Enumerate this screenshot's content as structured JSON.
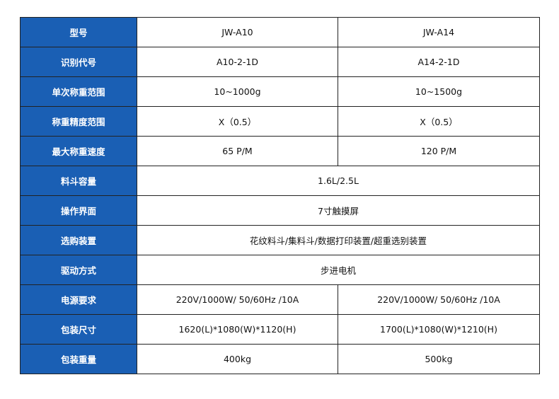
{
  "colors": {
    "label_bg": "#1a5fb4",
    "label_text": "#ffffff",
    "border": "#222222"
  },
  "rows": [
    {
      "label": "型号",
      "a": "JW-A10",
      "b": "JW-A14"
    },
    {
      "label": "识别代号",
      "a": "A10-2-1D",
      "b": "A14-2-1D"
    },
    {
      "label": "单次称重范围",
      "a": "10~1000g",
      "b": "10~1500g"
    },
    {
      "label": "称重精度范围",
      "a": "X（0.5）",
      "b": "X（0.5）"
    },
    {
      "label": "最大称重速度",
      "a": "65 P/M",
      "b": "120 P/M"
    },
    {
      "label": "料斗容量",
      "both": "1.6L/2.5L"
    },
    {
      "label": "操作界面",
      "both": "7寸触摸屏"
    },
    {
      "label": "选购装置",
      "both": "花纹料斗/集料斗/数据打印装置/超重选别装置"
    },
    {
      "label": "驱动方式",
      "both": "步进电机"
    },
    {
      "label": "电源要求",
      "a": "220V/1000W/ 50/60Hz /10A",
      "b": "220V/1000W/ 50/60Hz /10A"
    },
    {
      "label": "包装尺寸",
      "a": "1620(L)*1080(W)*1120(H)",
      "b": "1700(L)*1080(W)*1210(H)"
    },
    {
      "label": "包装重量",
      "a": "400kg",
      "b": "500kg"
    }
  ]
}
